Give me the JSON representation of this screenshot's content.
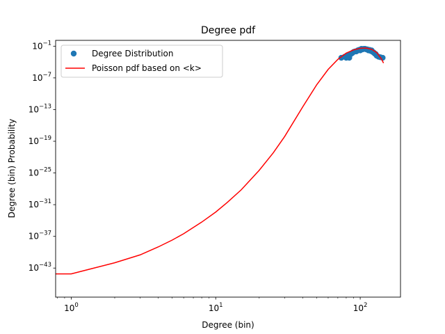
{
  "chart_data": {
    "type": "scatter",
    "title": "Degree pdf",
    "xlabel": "Degree (bin)",
    "ylabel": "Degree (bin) Probability",
    "xscale": "log",
    "yscale": "log",
    "xlim": [
      0.78,
      190
    ],
    "ylim_exponent": [
      -48.5,
      0.1
    ],
    "x_ticks": [
      {
        "base": "10",
        "exp": "0",
        "value": 1
      },
      {
        "base": "10",
        "exp": "1",
        "value": 10
      },
      {
        "base": "10",
        "exp": "2",
        "value": 100
      }
    ],
    "y_ticks": [
      {
        "base": "10",
        "exp": "−1",
        "exp_value": -1
      },
      {
        "base": "10",
        "exp": "−7",
        "exp_value": -7
      },
      {
        "base": "10",
        "exp": "−13",
        "exp_value": -13
      },
      {
        "base": "10",
        "exp": "−19",
        "exp_value": -19
      },
      {
        "base": "10",
        "exp": "−25",
        "exp_value": -25
      },
      {
        "base": "10",
        "exp": "−31",
        "exp_value": -31
      },
      {
        "base": "10",
        "exp": "−37",
        "exp_value": -37
      },
      {
        "base": "10",
        "exp": "−43",
        "exp_value": -43
      }
    ],
    "legend_position": "upper-left",
    "series": [
      {
        "name": "Degree Distribution",
        "kind": "scatter",
        "color": "#1f77b4",
        "points": [
          {
            "x": 74,
            "log10y": -3.2
          },
          {
            "x": 78,
            "log10y": -3.0
          },
          {
            "x": 80,
            "log10y": -3.2
          },
          {
            "x": 82,
            "log10y": -2.8
          },
          {
            "x": 84,
            "log10y": -3.2
          },
          {
            "x": 86,
            "log10y": -2.5
          },
          {
            "x": 88,
            "log10y": -2.3
          },
          {
            "x": 90,
            "log10y": -2.1
          },
          {
            "x": 92,
            "log10y": -2.0
          },
          {
            "x": 94,
            "log10y": -2.0
          },
          {
            "x": 96,
            "log10y": -1.8
          },
          {
            "x": 98,
            "log10y": -1.7
          },
          {
            "x": 100,
            "log10y": -1.8
          },
          {
            "x": 102,
            "log10y": -1.5
          },
          {
            "x": 104,
            "log10y": -1.6
          },
          {
            "x": 106,
            "log10y": -1.5
          },
          {
            "x": 108,
            "log10y": -1.5
          },
          {
            "x": 110,
            "log10y": -1.6
          },
          {
            "x": 112,
            "log10y": -1.6
          },
          {
            "x": 114,
            "log10y": -1.8
          },
          {
            "x": 116,
            "log10y": -1.7
          },
          {
            "x": 118,
            "log10y": -1.9
          },
          {
            "x": 120,
            "log10y": -1.8
          },
          {
            "x": 122,
            "log10y": -2.1
          },
          {
            "x": 124,
            "log10y": -2.2
          },
          {
            "x": 126,
            "log10y": -2.4
          },
          {
            "x": 128,
            "log10y": -2.5
          },
          {
            "x": 130,
            "log10y": -2.8
          },
          {
            "x": 134,
            "log10y": -3.0
          },
          {
            "x": 138,
            "log10y": -3.1
          },
          {
            "x": 143,
            "log10y": -3.2
          }
        ]
      },
      {
        "name": "Poisson pdf based on <k>",
        "kind": "line",
        "color": "#ff0000",
        "points": [
          {
            "x": 0.78,
            "log10y": -44.1
          },
          {
            "x": 1,
            "log10y": -44.1
          },
          {
            "x": 2,
            "log10y": -42.0
          },
          {
            "x": 3,
            "log10y": -40.5
          },
          {
            "x": 4,
            "log10y": -39.0
          },
          {
            "x": 5,
            "log10y": -37.7
          },
          {
            "x": 6,
            "log10y": -36.5
          },
          {
            "x": 8,
            "log10y": -34.3
          },
          {
            "x": 10,
            "log10y": -32.4
          },
          {
            "x": 12,
            "log10y": -30.6
          },
          {
            "x": 15,
            "log10y": -28.2
          },
          {
            "x": 20,
            "log10y": -24.5
          },
          {
            "x": 25,
            "log10y": -21.2
          },
          {
            "x": 30,
            "log10y": -18.1
          },
          {
            "x": 40,
            "log10y": -12.5
          },
          {
            "x": 50,
            "log10y": -8.3
          },
          {
            "x": 60,
            "log10y": -5.4
          },
          {
            "x": 70,
            "log10y": -3.5
          },
          {
            "x": 80,
            "log10y": -2.3
          },
          {
            "x": 90,
            "log10y": -1.7
          },
          {
            "x": 100,
            "log10y": -1.4
          },
          {
            "x": 110,
            "log10y": -1.35
          },
          {
            "x": 120,
            "log10y": -1.6
          },
          {
            "x": 130,
            "log10y": -2.2
          },
          {
            "x": 140,
            "log10y": -3.4
          },
          {
            "x": 145,
            "log10y": -4.2
          }
        ]
      }
    ]
  }
}
